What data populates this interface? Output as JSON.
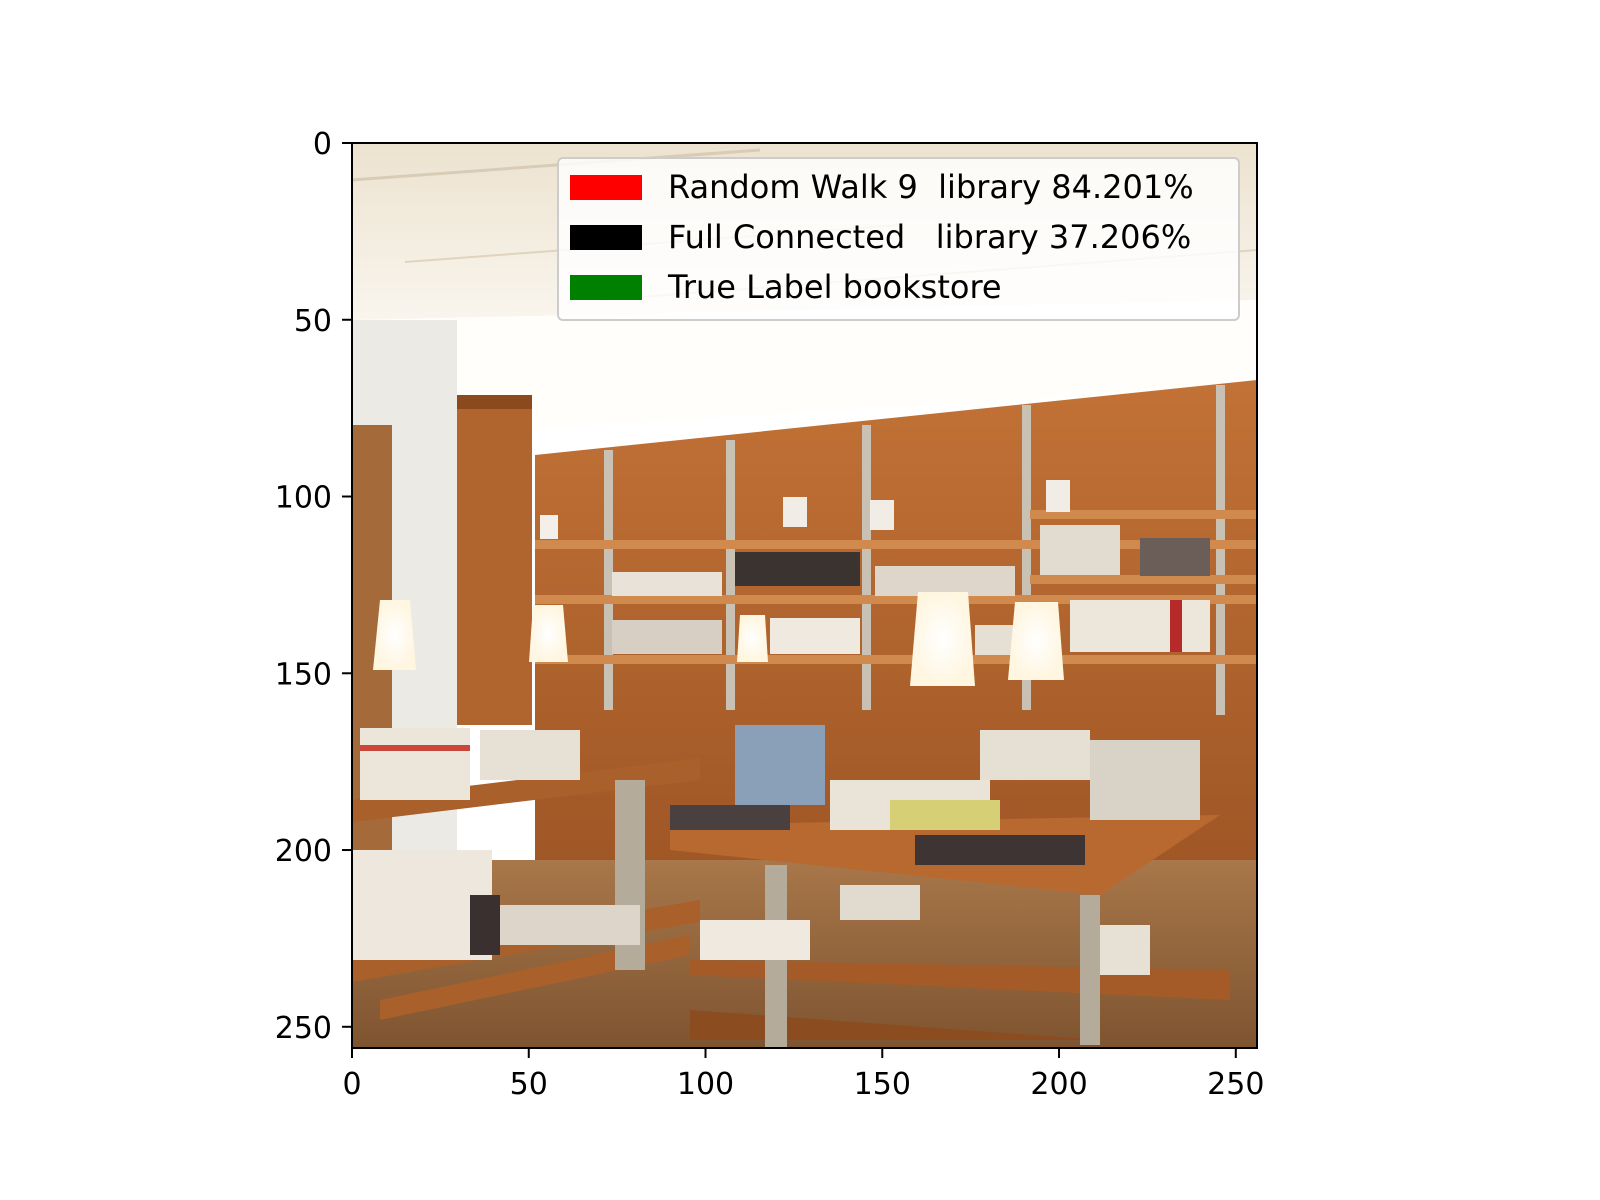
{
  "axes": {
    "x_ticks": [
      "0",
      "50",
      "100",
      "150",
      "200",
      "250"
    ],
    "y_ticks": [
      "0",
      "50",
      "100",
      "150",
      "200",
      "250"
    ],
    "x_tick_values": [
      0,
      50,
      100,
      150,
      200,
      250
    ],
    "y_tick_values": [
      0,
      50,
      100,
      150,
      200,
      250
    ],
    "xlim": [
      0,
      256
    ],
    "ylim": [
      256,
      0
    ]
  },
  "legend": {
    "placement": "upper-right",
    "entries": [
      {
        "label": "Random Walk 9  library 84.201%",
        "color": "#ff0000"
      },
      {
        "label": "Full Connected   library 37.206%",
        "color": "#000000"
      },
      {
        "label": "True Label bookstore",
        "color": "#008000"
      }
    ]
  },
  "image": {
    "subject": "bookstore-interior-icon",
    "palette": {
      "ceiling": "#f3ece0",
      "wall": "#ffffff",
      "wood": "#b5662b",
      "wood_dark": "#8a4a1e",
      "shelf_edge": "#c98043",
      "pillar": "#e9e6df",
      "lamp": "#fffdf5",
      "books_light": "#efe9df",
      "books_dark": "#3a3030",
      "metal": "#b8b0a0"
    }
  }
}
